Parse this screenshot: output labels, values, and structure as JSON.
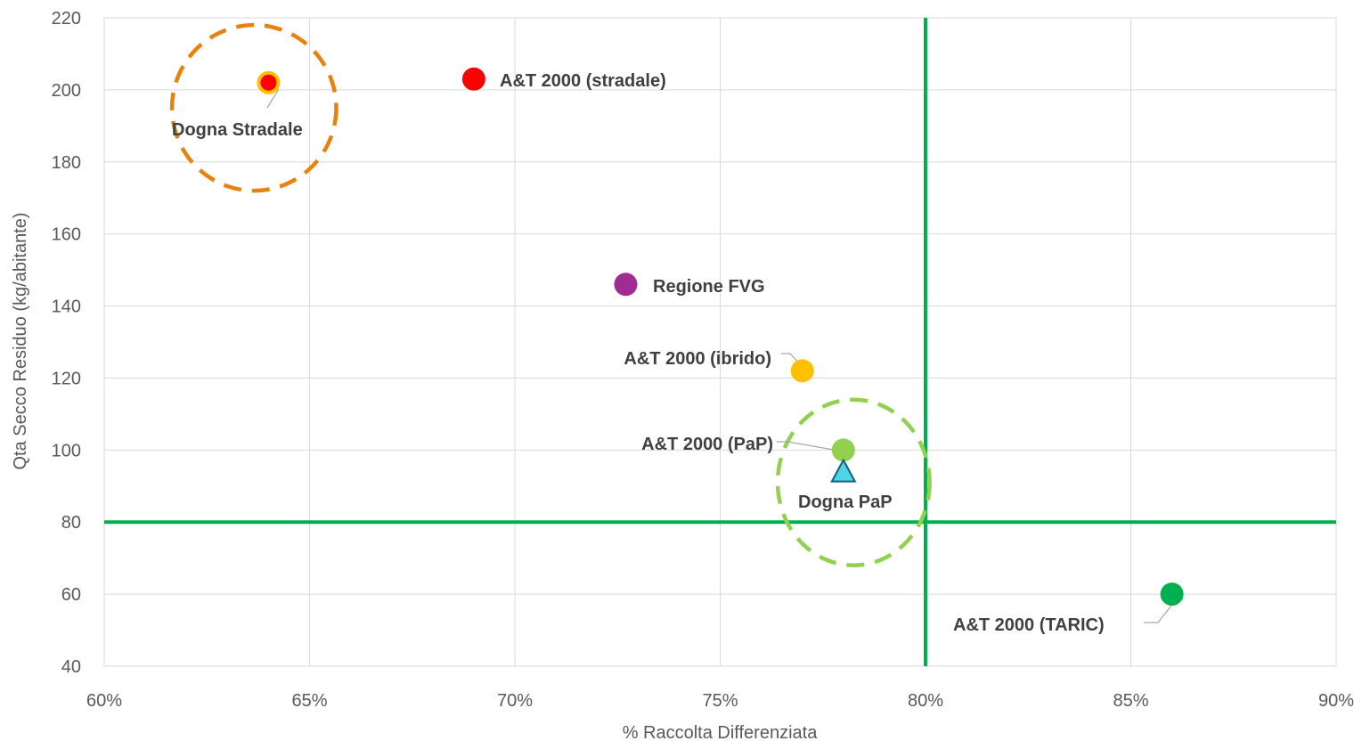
{
  "chart_data": {
    "type": "scatter",
    "title": "",
    "xlabel": "% Raccolta Differenziata",
    "ylabel": "Qta Secco Residuo (kg/abitante)",
    "xlim": [
      0.6,
      0.9
    ],
    "ylim": [
      40,
      220
    ],
    "x_ticks": [
      {
        "value": 0.6,
        "label": "60%"
      },
      {
        "value": 0.65,
        "label": "65%"
      },
      {
        "value": 0.7,
        "label": "70%"
      },
      {
        "value": 0.75,
        "label": "75%"
      },
      {
        "value": 0.8,
        "label": "80%"
      },
      {
        "value": 0.85,
        "label": "85%"
      },
      {
        "value": 0.9,
        "label": "90%"
      }
    ],
    "y_ticks": [
      {
        "value": 40,
        "label": "40"
      },
      {
        "value": 60,
        "label": "60"
      },
      {
        "value": 80,
        "label": "80"
      },
      {
        "value": 100,
        "label": "100"
      },
      {
        "value": 120,
        "label": "120"
      },
      {
        "value": 140,
        "label": "140"
      },
      {
        "value": 160,
        "label": "160"
      },
      {
        "value": 180,
        "label": "180"
      },
      {
        "value": 200,
        "label": "200"
      },
      {
        "value": 220,
        "label": "220"
      }
    ],
    "grid": true,
    "points": [
      {
        "id": "dogna-stradale",
        "label": "Dogna Stradale",
        "x": 0.64,
        "y": 202,
        "color": "#ff0000",
        "outline": "#ffc000",
        "marker": "circle"
      },
      {
        "id": "at2000-stradale",
        "label": "A&T 2000 (stradale)",
        "x": 0.69,
        "y": 203,
        "color": "#ff0000",
        "marker": "circle"
      },
      {
        "id": "regione-fvg",
        "label": "Regione FVG",
        "x": 0.727,
        "y": 146,
        "color": "#a02b93",
        "marker": "circle"
      },
      {
        "id": "at2000-ibrido",
        "label": "A&T 2000 (ibrido)",
        "x": 0.77,
        "y": 122,
        "color": "#ffc000",
        "marker": "circle"
      },
      {
        "id": "at2000-pap",
        "label": "A&T 2000 (PaP)",
        "x": 0.78,
        "y": 100,
        "color": "#92d050",
        "marker": "circle"
      },
      {
        "id": "dogna-pap",
        "label": "Dogna PaP",
        "x": 0.78,
        "y": 94,
        "color": "#4fd4e8",
        "outline": "#156082",
        "marker": "triangle"
      },
      {
        "id": "at2000-taric",
        "label": "A&T 2000 (TARIC)",
        "x": 0.86,
        "y": 60,
        "color": "#00b050",
        "marker": "circle"
      }
    ],
    "reference_lines": [
      {
        "axis": "x",
        "value": 0.8,
        "color": "#00b050"
      },
      {
        "axis": "y",
        "value": 80,
        "color": "#00b050"
      }
    ],
    "highlight_circles": [
      {
        "center_x": 0.6365,
        "center_y": 195,
        "radius_x": 0.02,
        "radius_y": 23,
        "color": "#e8820c"
      },
      {
        "center_x": 0.7825,
        "center_y": 91,
        "radius_x": 0.0185,
        "radius_y": 23,
        "color": "#92d050"
      }
    ]
  }
}
